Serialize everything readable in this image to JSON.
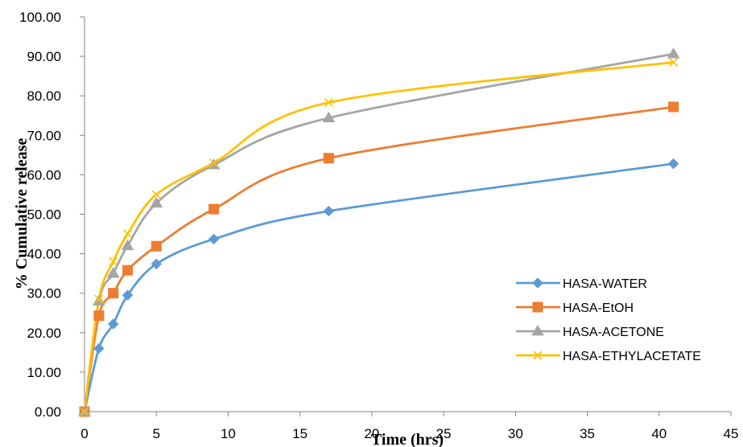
{
  "chart_data": {
    "type": "line",
    "title": "",
    "xlabel": "Time (hrs)",
    "ylabel": "% Cumulative release",
    "xlim": [
      0,
      45
    ],
    "ylim": [
      0,
      100
    ],
    "x_ticks": [
      "0",
      "5",
      "10",
      "15",
      "20",
      "25",
      "30",
      "35",
      "40",
      "45"
    ],
    "y_ticks": [
      "0.00",
      "10.00",
      "20.00",
      "30.00",
      "40.00",
      "50.00",
      "60.00",
      "70.00",
      "80.00",
      "90.00",
      "100.00"
    ],
    "grid": false,
    "legend_position": "right",
    "x": [
      0,
      1,
      2,
      3,
      5,
      9,
      17,
      41
    ],
    "series": [
      {
        "name": "HASA-WATER",
        "color": "#5B9BD5",
        "marker": "diamond",
        "values": [
          0,
          16.0,
          22.2,
          29.5,
          37.4,
          43.7,
          50.8,
          62.8
        ]
      },
      {
        "name": "HASA-EtOH",
        "color": "#ED7D31",
        "marker": "square",
        "values": [
          0,
          24.3,
          30.0,
          35.8,
          41.9,
          51.3,
          64.2,
          77.2
        ]
      },
      {
        "name": "HASA-ACETONE",
        "color": "#A5A5A5",
        "marker": "triangle",
        "values": [
          0,
          28.0,
          35.0,
          42.0,
          52.8,
          62.5,
          74.4,
          90.6
        ]
      },
      {
        "name": "HASA-ETHYLACETATE",
        "color": "#FFC000",
        "marker": "x",
        "values": [
          0,
          28.5,
          38.0,
          45.0,
          55.0,
          63.0,
          78.3,
          88.5
        ]
      }
    ]
  }
}
